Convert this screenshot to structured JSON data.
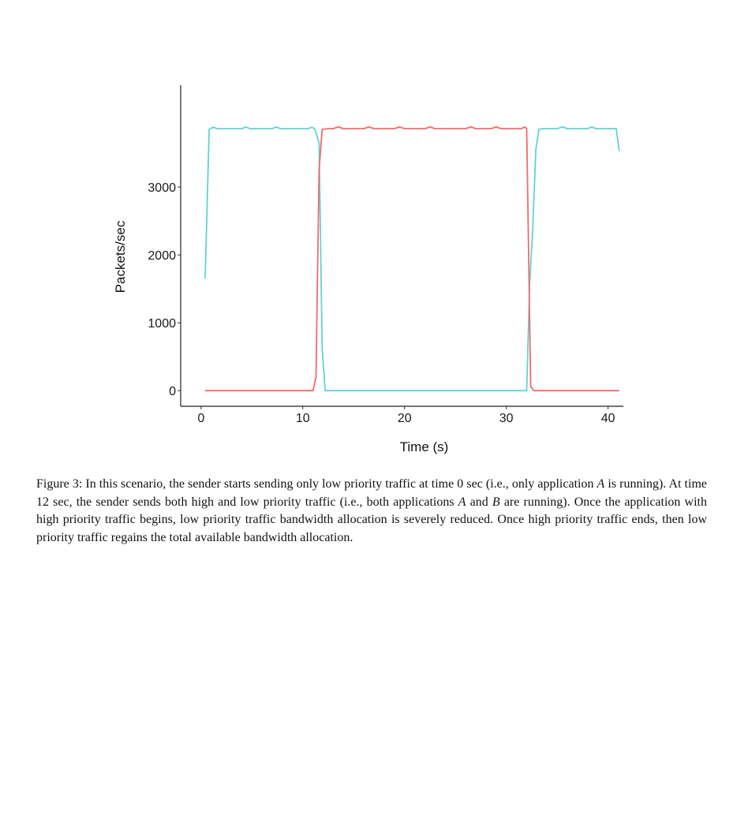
{
  "chart_data": {
    "type": "line",
    "xlabel": "Time (s)",
    "ylabel": "Packets/sec",
    "xlim": [
      -2,
      41.5
    ],
    "ylim": [
      -230,
      4500
    ],
    "xticks": [
      0,
      10,
      20,
      30,
      40
    ],
    "yticks": [
      0,
      1000,
      2000,
      3000
    ],
    "grid": false,
    "legend": "none",
    "series": [
      {
        "color": "#5fd3d6",
        "x": [
          0.4,
          0.8,
          1.2,
          1.6,
          2,
          3,
          4,
          4.4,
          4.8,
          5.5,
          6,
          7,
          7.4,
          7.8,
          9,
          10,
          10.5,
          10.9,
          11.2,
          11.6,
          11.9,
          12.2,
          15,
          20,
          25,
          30,
          32,
          32.3,
          32.6,
          32.9,
          33.2,
          33.5,
          34,
          35,
          35.5,
          36,
          37,
          38,
          38.4,
          38.8,
          40,
          40.8,
          41.1
        ],
        "y": [
          1650,
          3850,
          3880,
          3860,
          3860,
          3860,
          3860,
          3885,
          3860,
          3860,
          3860,
          3860,
          3885,
          3860,
          3860,
          3860,
          3860,
          3880,
          3850,
          3650,
          620,
          0,
          0,
          0,
          0,
          0,
          0,
          1600,
          2400,
          3550,
          3850,
          3860,
          3860,
          3860,
          3885,
          3860,
          3860,
          3860,
          3885,
          3860,
          3860,
          3860,
          3530
        ]
      },
      {
        "color": "#f26b6b",
        "x": [
          0.4,
          5,
          10.5,
          11,
          11.3,
          11.6,
          11.9,
          12.5,
          13,
          13.5,
          14,
          16,
          16.5,
          17,
          19,
          19.5,
          20,
          22,
          22.5,
          23,
          25,
          26,
          26.5,
          27,
          28.5,
          29,
          29.5,
          31.5,
          31.8,
          32,
          32.4,
          32.7,
          33.5,
          35,
          40,
          41.1
        ],
        "y": [
          0,
          0,
          0,
          0,
          200,
          3250,
          3850,
          3860,
          3860,
          3885,
          3860,
          3860,
          3885,
          3860,
          3860,
          3885,
          3860,
          3860,
          3885,
          3860,
          3860,
          3860,
          3885,
          3860,
          3860,
          3885,
          3860,
          3860,
          3885,
          3860,
          60,
          0,
          0,
          0,
          0,
          0
        ]
      }
    ]
  },
  "caption": {
    "p1": "Figure 3: In this scenario, the sender starts sending only low priority traffic at time 0 sec (i.e., only application ",
    "p2": "A",
    "p3": " is running). At time 12 sec, the sender sends both high and low priority traffic (i.e., both applications ",
    "p4": "A",
    "p5": " and ",
    "p6": "B",
    "p7": " are running). Once the application with high priority traffic begins, low priority traffic bandwidth allocation is severely reduced. Once high priority traffic ends, then low priority traffic regains the total available bandwidth allocation."
  }
}
